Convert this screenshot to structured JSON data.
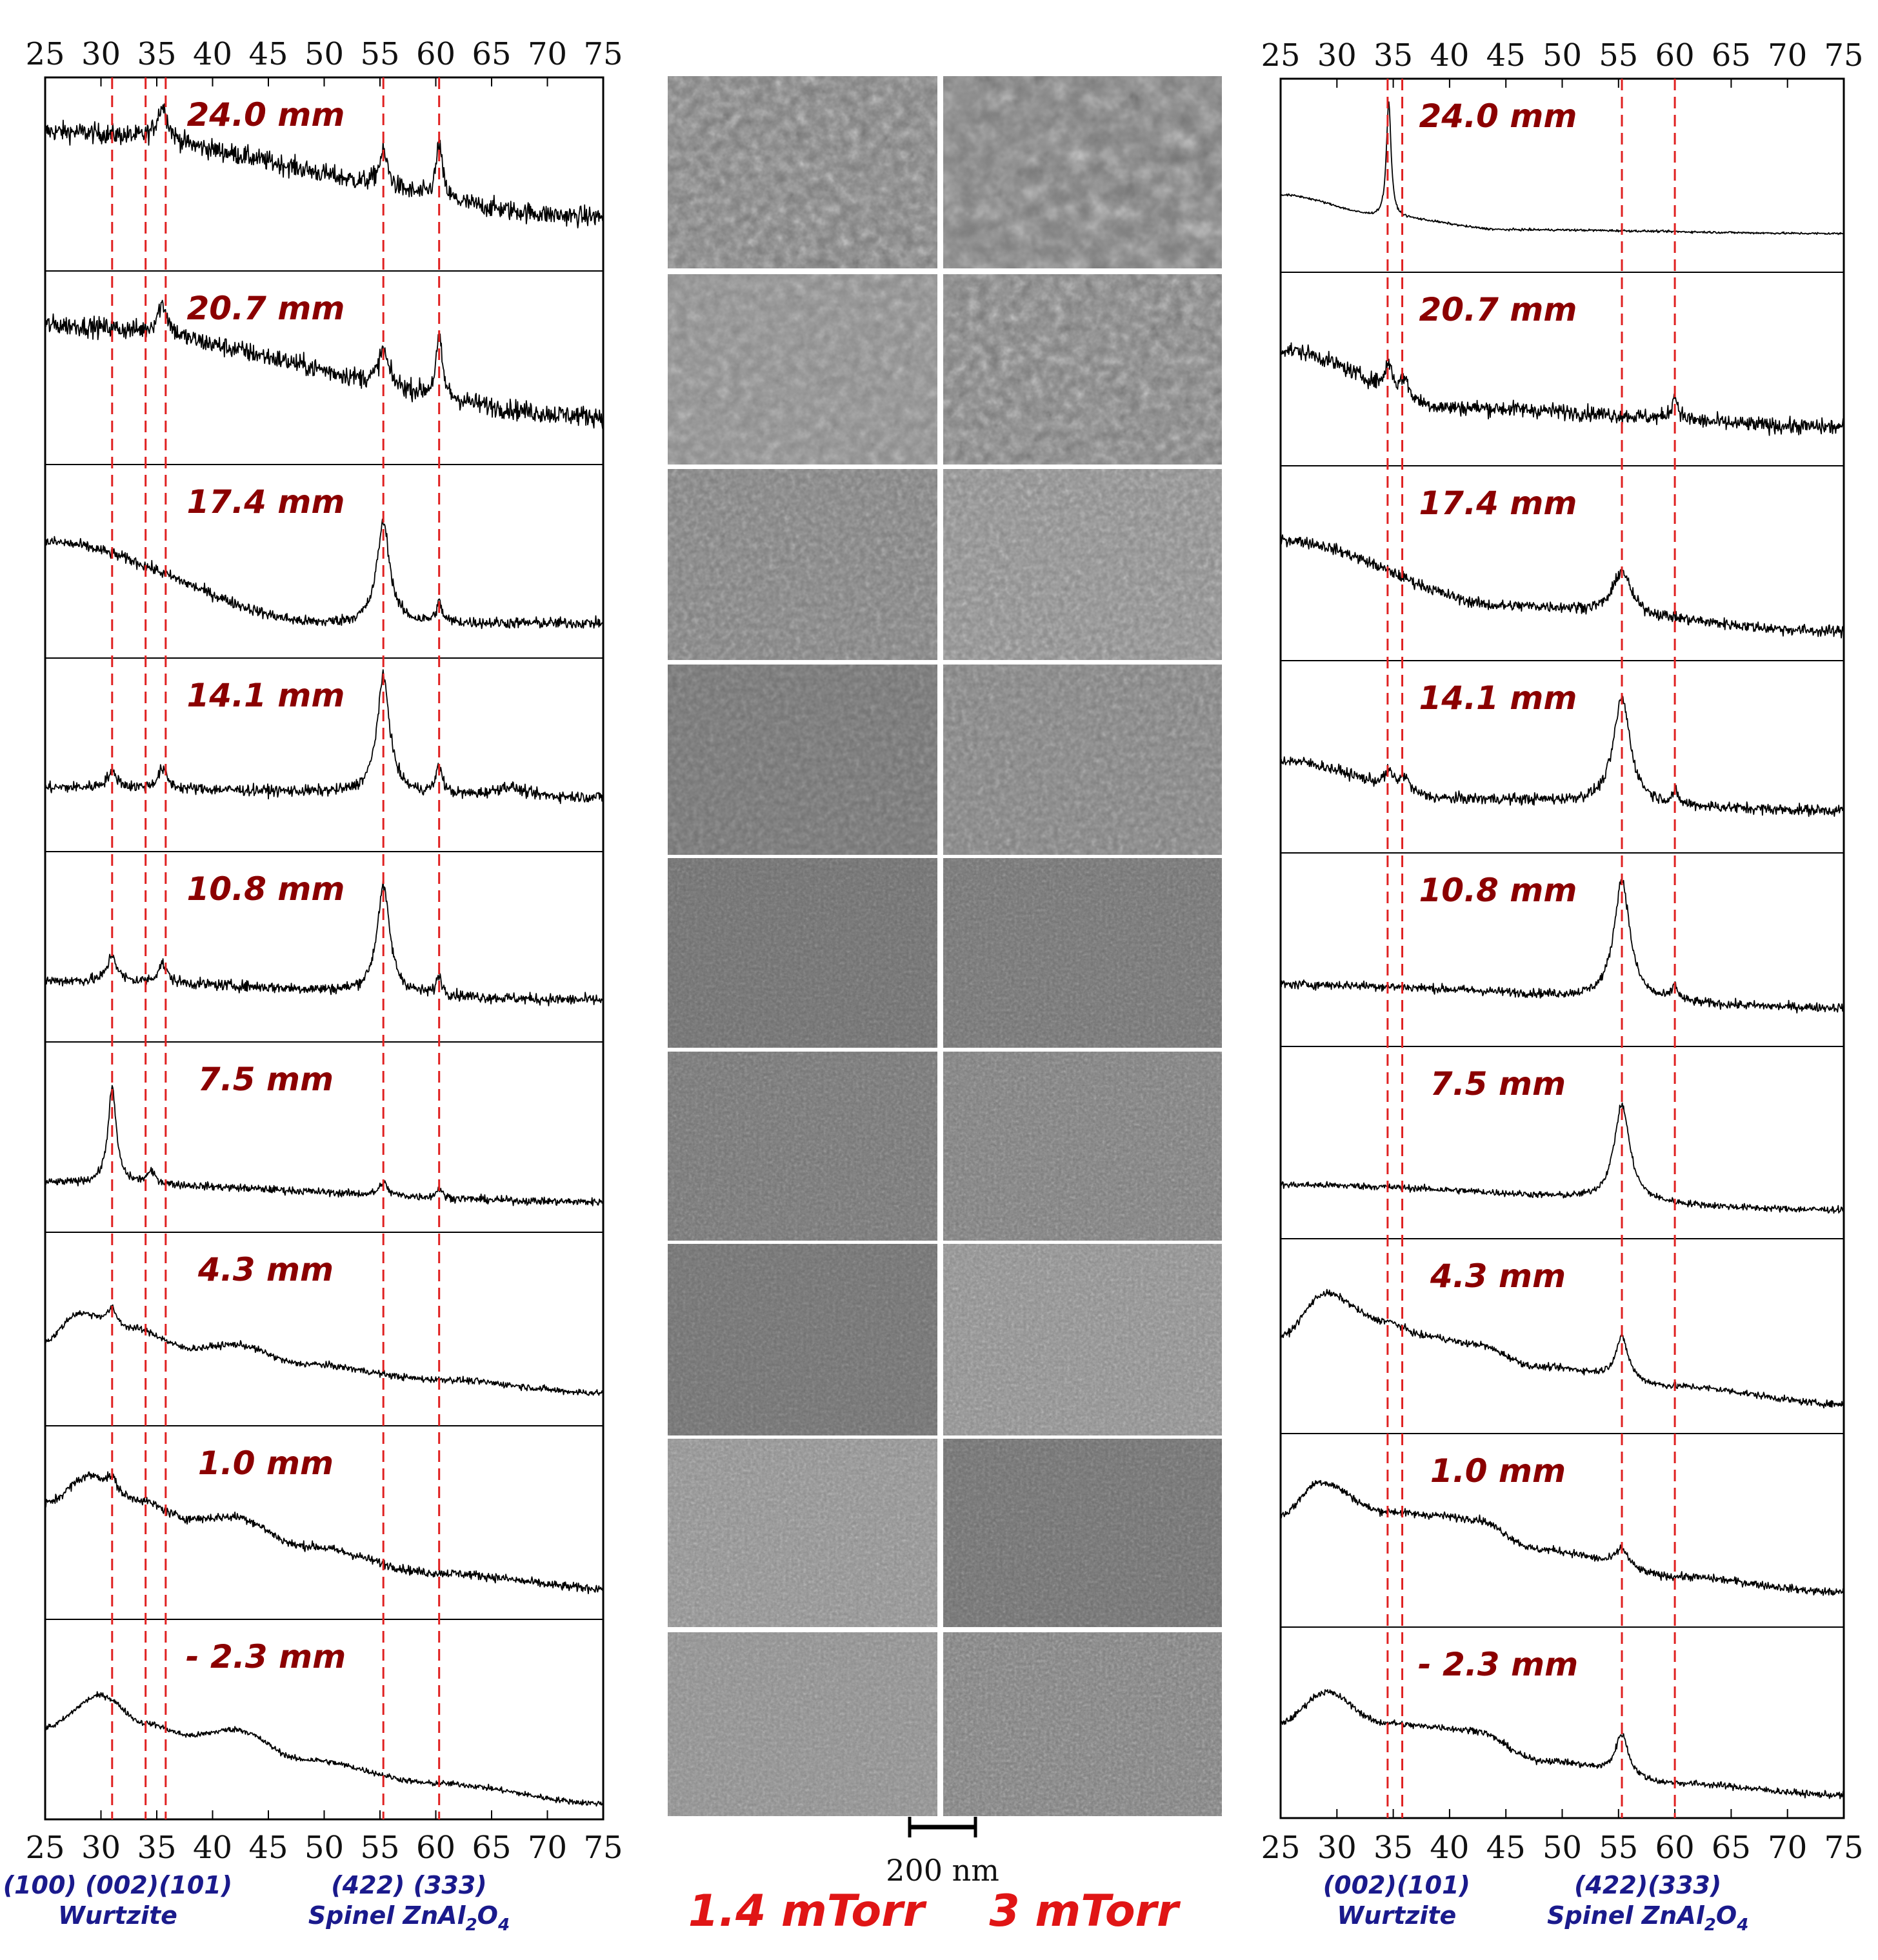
{
  "chart_data": {
    "type": "line",
    "x_ticks": [
      "25",
      "30",
      "35",
      "40",
      "45",
      "50",
      "55",
      "60",
      "65",
      "70",
      "75"
    ],
    "xlim": [
      25,
      75
    ],
    "distances": [
      "24.0 mm",
      "20.7 mm",
      "17.4 mm",
      "14.1 mm",
      "10.8 mm",
      "7.5 mm",
      "4.3 mm",
      "1.0 mm",
      "- 2.3 mm"
    ],
    "colors": {
      "distance_label": "#8b0000",
      "reference_line": "#e02020",
      "peak_label": "#1a1a8c",
      "condition_label": "#e01515",
      "trace": "#000000"
    },
    "panels": [
      {
        "side": "left",
        "reference_lines_x": [
          31.0,
          34.0,
          35.8,
          55.3,
          60.3
        ],
        "peak_labels": {
          "wurtzite_hkl": "(100) (002)(101)",
          "wurtzite": "Wurtzite",
          "spinel_hkl": "(422)  (333)",
          "spinel_prefix": "Spinel ZnAl",
          "spinel_sub1": "2",
          "spinel_mid": "O",
          "spinel_sub2": "4"
        },
        "traces": [
          {
            "label": "24.0 mm",
            "baseline": [
              [
                25,
                0.72
              ],
              [
                75,
                0.28
              ]
            ],
            "peaks": [
              {
                "x": 35.5,
                "height": 0.18,
                "width": 0.6
              },
              {
                "x": 55.3,
                "height": 0.18,
                "width": 0.5
              },
              {
                "x": 60.3,
                "height": 0.28,
                "width": 0.35
              }
            ],
            "noise": 0.09
          },
          {
            "label": "20.7 mm",
            "baseline": [
              [
                25,
                0.72
              ],
              [
                75,
                0.25
              ]
            ],
            "peaks": [
              {
                "x": 35.5,
                "height": 0.16,
                "width": 0.6
              },
              {
                "x": 55.3,
                "height": 0.18,
                "width": 0.5
              },
              {
                "x": 60.3,
                "height": 0.3,
                "width": 0.35
              }
            ],
            "noise": 0.09
          },
          {
            "label": "17.4 mm",
            "baseline": [
              [
                25,
                0.6
              ],
              [
                50,
                0.18
              ],
              [
                75,
                0.18
              ]
            ],
            "peaks": [
              {
                "x": 55.3,
                "height": 0.52,
                "width": 0.7
              },
              {
                "x": 60.3,
                "height": 0.1,
                "width": 0.3
              }
            ],
            "noise": 0.05
          },
          {
            "label": "14.1 mm",
            "baseline": [
              [
                25,
                0.33
              ],
              [
                75,
                0.28
              ]
            ],
            "peaks": [
              {
                "x": 31.0,
                "height": 0.08,
                "width": 0.6
              },
              {
                "x": 35.5,
                "height": 0.1,
                "width": 0.5
              },
              {
                "x": 55.3,
                "height": 0.6,
                "width": 0.7
              },
              {
                "x": 60.3,
                "height": 0.14,
                "width": 0.35
              },
              {
                "x": 66.5,
                "height": 0.05,
                "width": 1.5
              }
            ],
            "noise": 0.05
          },
          {
            "label": "10.8 mm",
            "baseline": [
              [
                25,
                0.32
              ],
              [
                75,
                0.22
              ]
            ],
            "peaks": [
              {
                "x": 31.0,
                "height": 0.14,
                "width": 0.5
              },
              {
                "x": 35.5,
                "height": 0.1,
                "width": 0.5
              },
              {
                "x": 55.3,
                "height": 0.56,
                "width": 0.7
              },
              {
                "x": 60.3,
                "height": 0.1,
                "width": 0.3
              }
            ],
            "noise": 0.05
          },
          {
            "label": "7.5 mm",
            "baseline": [
              [
                25,
                0.26
              ],
              [
                75,
                0.16
              ]
            ],
            "peaks": [
              {
                "x": 31.0,
                "height": 0.5,
                "width": 0.45
              },
              {
                "x": 34.5,
                "height": 0.06,
                "width": 0.5
              },
              {
                "x": 55.3,
                "height": 0.07,
                "width": 0.4
              },
              {
                "x": 60.3,
                "height": 0.05,
                "width": 0.3
              }
            ],
            "noise": 0.035
          },
          {
            "label": "4.3 mm",
            "baseline": [
              [
                25,
                0.44
              ],
              [
                28,
                0.58
              ],
              [
                33,
                0.5
              ],
              [
                38,
                0.4
              ],
              [
                42,
                0.42
              ],
              [
                48,
                0.32
              ],
              [
                60,
                0.24
              ],
              [
                75,
                0.17
              ]
            ],
            "peaks": [
              {
                "x": 31.0,
                "height": 0.08,
                "width": 0.5
              }
            ],
            "noise": 0.03
          },
          {
            "label": "1.0 mm",
            "baseline": [
              [
                25,
                0.6
              ],
              [
                29,
                0.74
              ],
              [
                33,
                0.62
              ],
              [
                38,
                0.52
              ],
              [
                42,
                0.53
              ],
              [
                48,
                0.38
              ],
              [
                60,
                0.24
              ],
              [
                75,
                0.16
              ]
            ],
            "peaks": [
              {
                "x": 31.0,
                "height": 0.06,
                "width": 0.5
              }
            ],
            "noise": 0.04
          },
          {
            "label": "- 2.3 mm",
            "baseline": [
              [
                25,
                0.46
              ],
              [
                30,
                0.62
              ],
              [
                34,
                0.48
              ],
              [
                38,
                0.42
              ],
              [
                42,
                0.45
              ],
              [
                48,
                0.3
              ],
              [
                60,
                0.18
              ],
              [
                75,
                0.08
              ]
            ],
            "peaks": [],
            "noise": 0.025
          }
        ]
      },
      {
        "side": "right",
        "reference_lines_x": [
          34.5,
          35.8,
          55.3,
          60.0
        ],
        "peak_labels": {
          "wurtzite_hkl": "(002)(101)",
          "wurtzite": "Wurtzite",
          "spinel_hkl": "(422)(333)",
          "spinel_prefix": "Spinel ZnAl",
          "spinel_sub1": "2",
          "spinel_mid": "O",
          "spinel_sub2": "4"
        },
        "traces": [
          {
            "label": "24.0 mm",
            "baseline": [
              [
                25,
                0.4
              ],
              [
                35,
                0.28
              ],
              [
                45,
                0.22
              ],
              [
                75,
                0.2
              ]
            ],
            "peaks": [
              {
                "x": 34.6,
                "height": 0.6,
                "width": 0.25
              }
            ],
            "noise": 0.01
          },
          {
            "label": "20.7 mm",
            "baseline": [
              [
                25,
                0.6
              ],
              [
                40,
                0.3
              ],
              [
                75,
                0.2
              ]
            ],
            "peaks": [
              {
                "x": 34.6,
                "height": 0.14,
                "width": 0.4
              },
              {
                "x": 36.0,
                "height": 0.1,
                "width": 0.4
              },
              {
                "x": 60.0,
                "height": 0.12,
                "width": 0.35
              }
            ],
            "noise": 0.07
          },
          {
            "label": "17.4 mm",
            "baseline": [
              [
                25,
                0.62
              ],
              [
                45,
                0.28
              ],
              [
                75,
                0.15
              ]
            ],
            "peaks": [
              {
                "x": 55.3,
                "height": 0.22,
                "width": 0.9
              }
            ],
            "noise": 0.05
          },
          {
            "label": "14.1 mm",
            "baseline": [
              [
                25,
                0.48
              ],
              [
                40,
                0.28
              ],
              [
                75,
                0.22
              ]
            ],
            "peaks": [
              {
                "x": 34.6,
                "height": 0.08,
                "width": 0.5
              },
              {
                "x": 36.0,
                "height": 0.08,
                "width": 0.5
              },
              {
                "x": 55.3,
                "height": 0.55,
                "width": 0.9
              },
              {
                "x": 60.0,
                "height": 0.06,
                "width": 0.3
              }
            ],
            "noise": 0.05
          },
          {
            "label": "10.8 mm",
            "baseline": [
              [
                25,
                0.32
              ],
              [
                75,
                0.2
              ]
            ],
            "peaks": [
              {
                "x": 55.3,
                "height": 0.62,
                "width": 0.85
              },
              {
                "x": 60.0,
                "height": 0.08,
                "width": 0.3
              }
            ],
            "noise": 0.04
          },
          {
            "label": "7.5 mm",
            "baseline": [
              [
                25,
                0.28
              ],
              [
                75,
                0.15
              ]
            ],
            "peaks": [
              {
                "x": 55.3,
                "height": 0.5,
                "width": 0.85
              }
            ],
            "noise": 0.03
          },
          {
            "label": "4.3 mm",
            "baseline": [
              [
                25,
                0.5
              ],
              [
                29,
                0.72
              ],
              [
                34,
                0.58
              ],
              [
                38,
                0.5
              ],
              [
                42,
                0.46
              ],
              [
                48,
                0.34
              ],
              [
                60,
                0.24
              ],
              [
                75,
                0.15
              ]
            ],
            "peaks": [
              {
                "x": 55.3,
                "height": 0.22,
                "width": 0.7
              }
            ],
            "noise": 0.03
          },
          {
            "label": "1.0 mm",
            "baseline": [
              [
                25,
                0.58
              ],
              [
                28.5,
                0.75
              ],
              [
                34,
                0.6
              ],
              [
                38,
                0.58
              ],
              [
                42,
                0.56
              ],
              [
                48,
                0.4
              ],
              [
                60,
                0.26
              ],
              [
                75,
                0.18
              ]
            ],
            "peaks": [
              {
                "x": 55.3,
                "height": 0.1,
                "width": 0.7
              }
            ],
            "noise": 0.035
          },
          {
            "label": "- 2.3 mm",
            "baseline": [
              [
                25,
                0.5
              ],
              [
                29,
                0.66
              ],
              [
                34,
                0.5
              ],
              [
                38,
                0.48
              ],
              [
                42,
                0.46
              ],
              [
                48,
                0.3
              ],
              [
                60,
                0.18
              ],
              [
                75,
                0.12
              ]
            ],
            "peaks": [
              {
                "x": 55.3,
                "height": 0.22,
                "width": 0.7
              }
            ],
            "noise": 0.03
          }
        ]
      }
    ]
  },
  "micrographs": {
    "scale_bar": "200 nm",
    "conditions": [
      "1.4 mTorr",
      "3 mTorr"
    ],
    "tones": [
      [
        {
          "base": "#7c7c7c",
          "contrast": 0.95
        },
        {
          "base": "#7a7a7a",
          "contrast": 1.0
        }
      ],
      [
        {
          "base": "#8a8a8a",
          "contrast": 0.5
        },
        {
          "base": "#7d7d7d",
          "contrast": 0.95
        }
      ],
      [
        {
          "base": "#7f7f7f",
          "contrast": 0.45
        },
        {
          "base": "#8a8a8a",
          "contrast": 0.6
        }
      ],
      [
        {
          "base": "#737373",
          "contrast": 0.3
        },
        {
          "base": "#808080",
          "contrast": 0.4
        }
      ],
      [
        {
          "base": "#6e6e6e",
          "contrast": 0.25
        },
        {
          "base": "#727272",
          "contrast": 0.3
        }
      ],
      [
        {
          "base": "#747474",
          "contrast": 0.3
        },
        {
          "base": "#7c7c7c",
          "contrast": 0.35
        }
      ],
      [
        {
          "base": "#707070",
          "contrast": 0.2
        },
        {
          "base": "#8c8c8c",
          "contrast": 0.45
        }
      ],
      [
        {
          "base": "#8e8e8e",
          "contrast": 0.4
        },
        {
          "base": "#6f6f6f",
          "contrast": 0.35
        }
      ],
      [
        {
          "base": "#8c8c8c",
          "contrast": 0.3
        },
        {
          "base": "#7e7e7e",
          "contrast": 0.45
        }
      ]
    ]
  }
}
